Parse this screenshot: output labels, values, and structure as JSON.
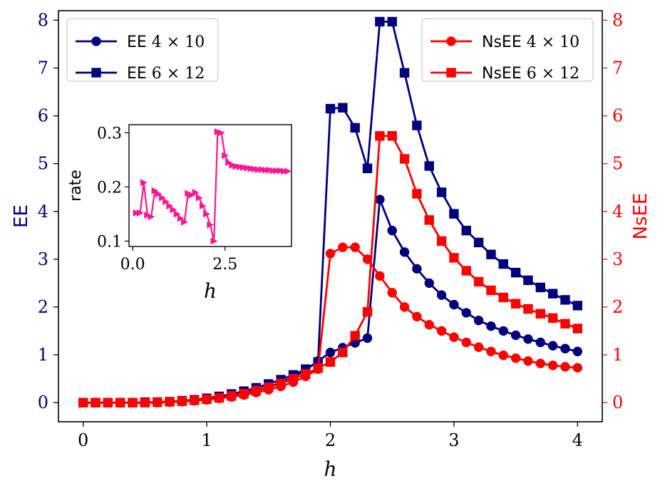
{
  "chart_data": [
    {
      "type": "line",
      "title": "",
      "xlabel": "h",
      "ylabel": "EE",
      "ylabel_right": "NsEE",
      "xlim": [
        -0.2,
        4.2
      ],
      "ylim": [
        -0.4,
        8.2
      ],
      "ylim_right": [
        -0.4,
        8.2
      ],
      "xticks": [
        0,
        1,
        2,
        3,
        4
      ],
      "xtick_labels": [
        "0",
        "1",
        "2",
        "3",
        "4"
      ],
      "yticks": [
        0,
        1,
        2,
        3,
        4,
        5,
        6,
        7,
        8
      ],
      "ytick_labels": [
        "0",
        "1",
        "2",
        "3",
        "4",
        "5",
        "6",
        "7",
        "8"
      ],
      "yticks_right": [
        0,
        1,
        2,
        3,
        4,
        5,
        6,
        7,
        8
      ],
      "ytick_labels_right": [
        "0",
        "1",
        "2",
        "3",
        "4",
        "5",
        "6",
        "7",
        "8"
      ],
      "colors": {
        "left": "#00007f",
        "right": "#ff0000"
      },
      "legend_left": "top-left",
      "legend_right": "top-right",
      "x": [
        0,
        0.1,
        0.2,
        0.3,
        0.4,
        0.5,
        0.6,
        0.7,
        0.8,
        0.9,
        1.0,
        1.1,
        1.2,
        1.3,
        1.4,
        1.5,
        1.6,
        1.7,
        1.8,
        1.9,
        2.0,
        2.1,
        2.2,
        2.3,
        2.4,
        2.5,
        2.6,
        2.7,
        2.8,
        2.9,
        3.0,
        3.1,
        3.2,
        3.3,
        3.4,
        3.5,
        3.6,
        3.7,
        3.8,
        3.9,
        4.0
      ],
      "series": [
        {
          "name": "EE 4 × 10",
          "name_prefix": "EE",
          "name_math": "4 × 10",
          "axis": "left",
          "marker": "circle",
          "color": "#00007f",
          "values": [
            0,
            0,
            0,
            0,
            0,
            0,
            0.01,
            0.02,
            0.03,
            0.05,
            0.08,
            0.11,
            0.15,
            0.2,
            0.26,
            0.33,
            0.42,
            0.53,
            0.68,
            0.87,
            1.05,
            1.15,
            1.25,
            1.35,
            4.25,
            3.6,
            3.15,
            2.8,
            2.5,
            2.25,
            2.05,
            1.88,
            1.72,
            1.6,
            1.5,
            1.41,
            1.33,
            1.26,
            1.19,
            1.13,
            1.07
          ]
        },
        {
          "name": "EE 6 × 12",
          "name_prefix": "EE",
          "name_math": "6 × 12",
          "axis": "left",
          "marker": "square",
          "color": "#00007f",
          "values": [
            0,
            0,
            0,
            0,
            0,
            0.01,
            0.01,
            0.02,
            0.04,
            0.06,
            0.09,
            0.13,
            0.18,
            0.24,
            0.31,
            0.39,
            0.48,
            0.58,
            0.7,
            0.85,
            6.15,
            6.17,
            5.75,
            4.9,
            7.97,
            7.97,
            6.9,
            5.8,
            4.95,
            4.4,
            3.95,
            3.6,
            3.35,
            3.1,
            2.9,
            2.72,
            2.56,
            2.41,
            2.28,
            2.15,
            2.03
          ]
        },
        {
          "name": "NsEE 4 × 10",
          "name_prefix": "NsEE",
          "name_math": "4 × 10",
          "axis": "right",
          "marker": "circle",
          "color": "#ff0000",
          "values": [
            0,
            0,
            0,
            0,
            0,
            0,
            0,
            0.01,
            0.02,
            0.04,
            0.06,
            0.09,
            0.12,
            0.16,
            0.21,
            0.27,
            0.34,
            0.43,
            0.55,
            0.7,
            3.12,
            3.25,
            3.25,
            3.0,
            2.65,
            2.3,
            2.0,
            1.8,
            1.63,
            1.5,
            1.37,
            1.26,
            1.16,
            1.07,
            0.99,
            0.93,
            0.87,
            0.82,
            0.78,
            0.75,
            0.73
          ]
        },
        {
          "name": "NsEE 6 × 12",
          "name_prefix": "NsEE",
          "name_math": "6 × 12",
          "axis": "right",
          "marker": "square",
          "color": "#ff0000",
          "values": [
            0,
            0,
            0,
            0,
            0,
            0,
            0.01,
            0.02,
            0.03,
            0.05,
            0.07,
            0.1,
            0.14,
            0.19,
            0.25,
            0.32,
            0.4,
            0.5,
            0.6,
            0.72,
            0.85,
            1.05,
            1.4,
            1.9,
            5.58,
            5.58,
            5.1,
            4.37,
            3.82,
            3.38,
            3.03,
            2.76,
            2.53,
            2.35,
            2.2,
            2.07,
            1.96,
            1.86,
            1.77,
            1.65,
            1.55
          ]
        }
      ]
    },
    {
      "type": "line",
      "role": "inset",
      "title": "",
      "xlabel": "h",
      "ylabel": "rate",
      "xlim": [
        -0.1,
        4.3
      ],
      "ylim": [
        0.09,
        0.315
      ],
      "xticks": [
        0.0,
        2.5
      ],
      "xtick_labels": [
        "0.0",
        "2.5"
      ],
      "yticks": [
        0.1,
        0.2,
        0.3
      ],
      "ytick_labels": [
        "0.1",
        "0.2",
        "0.3"
      ],
      "color": "#ff1493",
      "marker": "triangle-right",
      "x": [
        0.1,
        0.2,
        0.3,
        0.4,
        0.5,
        0.6,
        0.7,
        0.8,
        0.9,
        1.0,
        1.1,
        1.2,
        1.3,
        1.4,
        1.5,
        1.6,
        1.7,
        1.8,
        1.9,
        2.0,
        2.1,
        2.2,
        2.3,
        2.4,
        2.5,
        2.6,
        2.7,
        2.8,
        2.9,
        3.0,
        3.1,
        3.2,
        3.3,
        3.4,
        3.5,
        3.6,
        3.7,
        3.8,
        3.9,
        4.0,
        4.1,
        4.2
      ],
      "values": [
        0.152,
        0.152,
        0.208,
        0.148,
        0.145,
        0.193,
        0.187,
        0.18,
        0.173,
        0.165,
        0.158,
        0.15,
        0.142,
        0.135,
        0.188,
        0.185,
        0.19,
        0.18,
        0.165,
        0.15,
        0.13,
        0.1,
        0.302,
        0.3,
        0.258,
        0.245,
        0.24,
        0.238,
        0.237,
        0.236,
        0.235,
        0.234,
        0.233,
        0.232,
        0.232,
        0.231,
        0.231,
        0.23,
        0.23,
        0.23,
        0.229,
        0.229
      ]
    }
  ]
}
